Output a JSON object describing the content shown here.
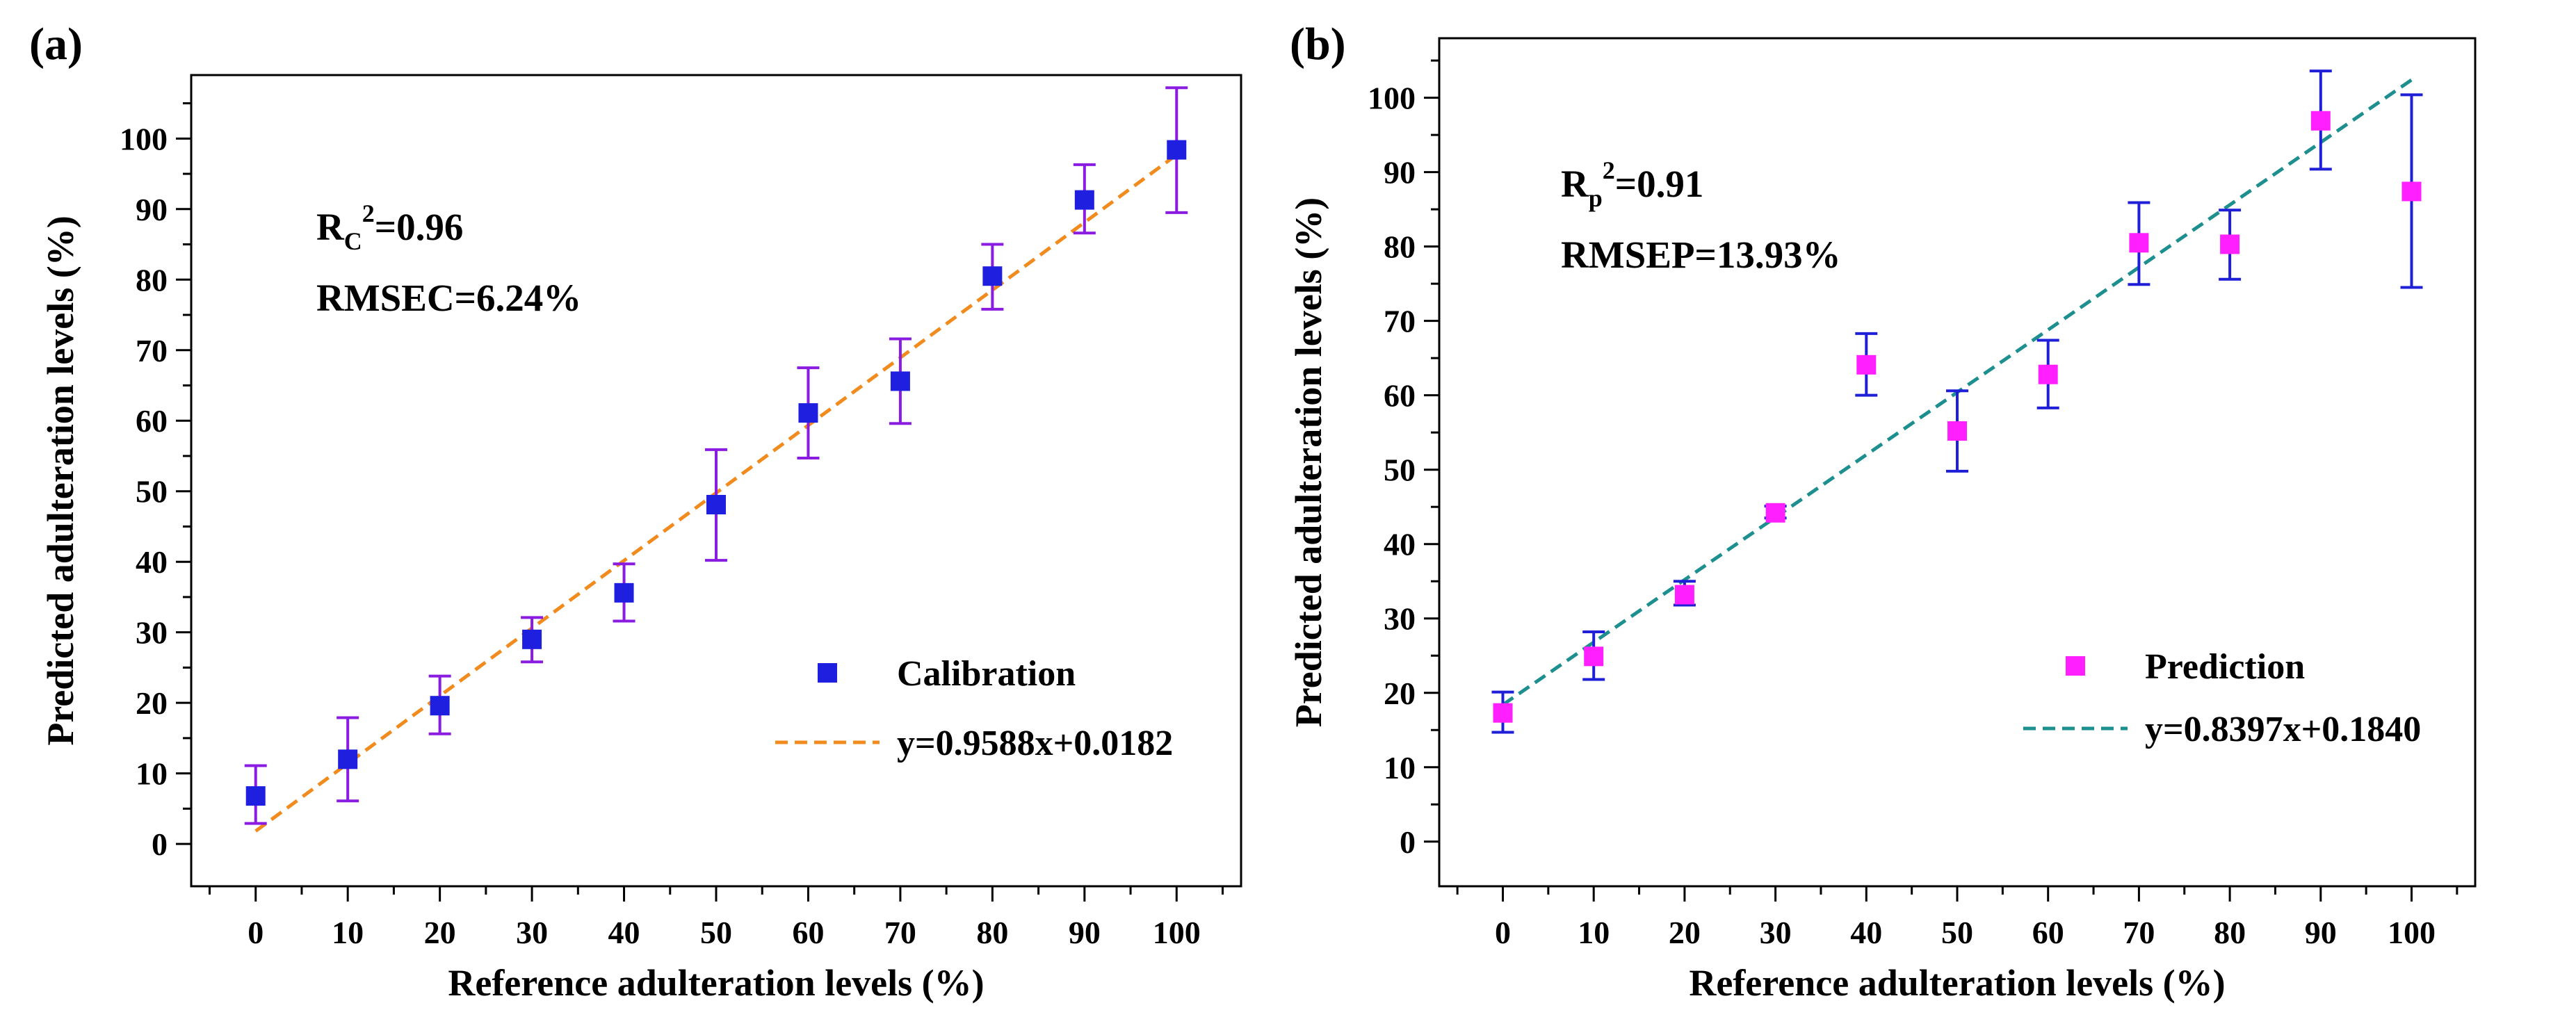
{
  "chart_data": [
    {
      "type": "scatter",
      "panel_label": "(a)",
      "xlabel": "Reference adulteration levels (%)",
      "ylabel": "Predicted adulteration levels (%)",
      "xlim": [
        -7,
        107
      ],
      "ylim": [
        -6,
        109
      ],
      "x_ticks": [
        "0",
        "10",
        "20",
        "30",
        "40",
        "50",
        "60",
        "70",
        "80",
        "90",
        "100"
      ],
      "y_ticks": [
        "0",
        "10",
        "20",
        "30",
        "40",
        "50",
        "60",
        "70",
        "80",
        "90",
        "100"
      ],
      "grid": false,
      "stats": {
        "r2_prefix": "R",
        "r2_subscript": "C",
        "r2_rest": "=0.96",
        "rmse_text": "RMSEC=6.24%"
      },
      "series": [
        {
          "name": "Calibration",
          "color": "#1f1fe0",
          "error_color": "#8a1be0",
          "x": [
            0,
            10,
            20,
            30,
            40,
            50,
            60,
            70,
            80,
            90,
            100
          ],
          "y": [
            6.8,
            12.0,
            19.6,
            29.0,
            35.6,
            48.1,
            61.1,
            65.6,
            80.5,
            91.3,
            98.4
          ],
          "err_low": [
            2.9,
            6.1,
            15.6,
            25.8,
            31.6,
            40.2,
            54.7,
            59.6,
            75.8,
            86.6,
            89.5
          ],
          "err_high": [
            11.1,
            17.9,
            23.8,
            32.1,
            39.7,
            55.9,
            67.5,
            71.6,
            85.0,
            96.3,
            107.2
          ]
        }
      ],
      "fit": {
        "label": "y=0.9588x+0.0182",
        "color": "#f28b1e",
        "x": [
          0,
          100
        ],
        "y": [
          1.82,
          97.7
        ]
      },
      "legend": "bottom-right"
    },
    {
      "type": "scatter",
      "panel_label": "(b)",
      "xlabel": "Reference adulteration levels (%)",
      "ylabel": "Predicted adulteration levels (%)",
      "xlim": [
        -7,
        107
      ],
      "ylim": [
        -6,
        108
      ],
      "x_ticks": [
        "0",
        "10",
        "20",
        "30",
        "40",
        "50",
        "60",
        "70",
        "80",
        "90",
        "100"
      ],
      "y_ticks": [
        "0",
        "10",
        "20",
        "30",
        "40",
        "50",
        "60",
        "70",
        "80",
        "90",
        "100"
      ],
      "grid": false,
      "stats": {
        "r2_prefix": "R",
        "r2_subscript": "p",
        "r2_rest": "=0.91",
        "rmse_text": "RMSEP=13.93%"
      },
      "series": [
        {
          "name": "Prediction",
          "color": "#ff1fff",
          "error_color": "#1f1fd8",
          "x": [
            0,
            10,
            20,
            30,
            40,
            50,
            60,
            70,
            80,
            90,
            100
          ],
          "y": [
            17.3,
            24.9,
            33.2,
            44.2,
            64.1,
            55.2,
            62.8,
            80.5,
            80.3,
            96.9,
            87.4
          ],
          "err_low": [
            14.7,
            21.8,
            31.8,
            43.5,
            60.0,
            49.8,
            58.3,
            74.9,
            75.6,
            90.4,
            74.5
          ],
          "err_high": [
            20.1,
            28.2,
            35.0,
            45.1,
            68.3,
            60.6,
            67.4,
            85.9,
            84.9,
            103.6,
            100.4
          ]
        }
      ],
      "fit": {
        "label": "y=0.8397x+0.1840",
        "color": "#1e8f8f",
        "x": [
          0,
          100
        ],
        "y": [
          18.4,
          102.4
        ]
      },
      "legend": "bottom-right"
    }
  ]
}
